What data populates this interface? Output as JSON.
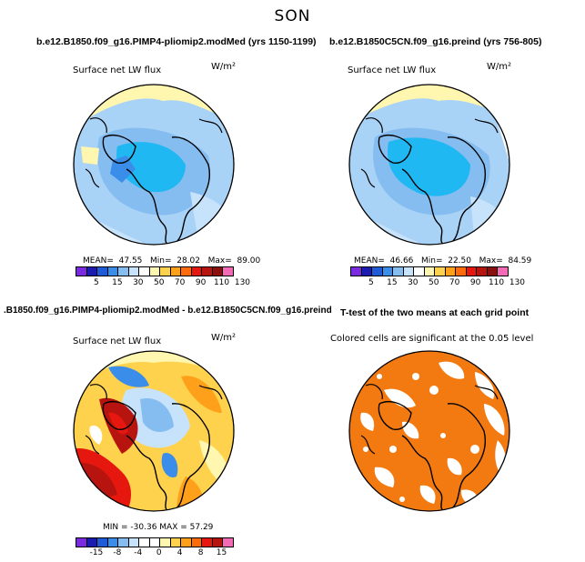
{
  "season_title": "SON",
  "panels": [
    {
      "title": "b.e12.B1850.f09_g16.PIMP4-pliomip2.modMed (yrs 1150-1199)",
      "variable": "Surface net LW flux",
      "units": "W/m²",
      "stats": {
        "mean_label": "MEAN=",
        "mean": "47.55",
        "min_label": "Min=",
        "min": "28.02",
        "max_label": "Max=",
        "max": "89.00"
      },
      "colorbar": [
        "5",
        "15",
        "30",
        "50",
        "70",
        "90",
        "110",
        "130"
      ]
    },
    {
      "title": "b.e12.B1850C5CN.f09_g16.preind (yrs 756-805)",
      "variable": "Surface net LW flux",
      "units": "W/m²",
      "stats": {
        "mean_label": "MEAN=",
        "mean": "46.66",
        "min_label": "Min=",
        "min": "22.50",
        "max_label": "Max=",
        "max": "84.59"
      },
      "colorbar": [
        "5",
        "15",
        "30",
        "50",
        "70",
        "90",
        "110",
        "130"
      ]
    },
    {
      "title": ".B1850.f09_g16.PIMP4-pliomip2.modMed - b.e12.B1850C5CN.f09_g16.preind",
      "variable": "Surface net LW flux",
      "units": "W/m²",
      "stats_line": "MIN = -30.36 MAX =  57.29",
      "colorbar": [
        "-15",
        "-8",
        "-4",
        "0",
        "4",
        "8",
        "15"
      ]
    },
    {
      "title": "T-test of the two means at each grid point",
      "note": "Colored cells are significant at the 0.05 level"
    }
  ],
  "colors": {
    "abs_scale": [
      "#7a2be0",
      "#1b1bb0",
      "#1f5ad8",
      "#3a8de8",
      "#85bdf0",
      "#c7e2fb",
      "#ffffff",
      "#fff6b0",
      "#ffd24d",
      "#ffa01a",
      "#ff6a0a",
      "#e5170f",
      "#b8140f",
      "#8a1010",
      "#f46bb5"
    ],
    "diff_scale": [
      "#7a2be0",
      "#1b1bb0",
      "#1f5ad8",
      "#3a8de8",
      "#85bdf0",
      "#c7e2fb",
      "#ffffff",
      "#ffffff",
      "#fff6b0",
      "#ffd24d",
      "#ffa01a",
      "#ff6a0a",
      "#e5170f",
      "#b8140f",
      "#f46bb5"
    ],
    "significant": "#f37a10",
    "map_base_blue": "#a9d2f7",
    "map_cyan": "#1fb8f2"
  }
}
